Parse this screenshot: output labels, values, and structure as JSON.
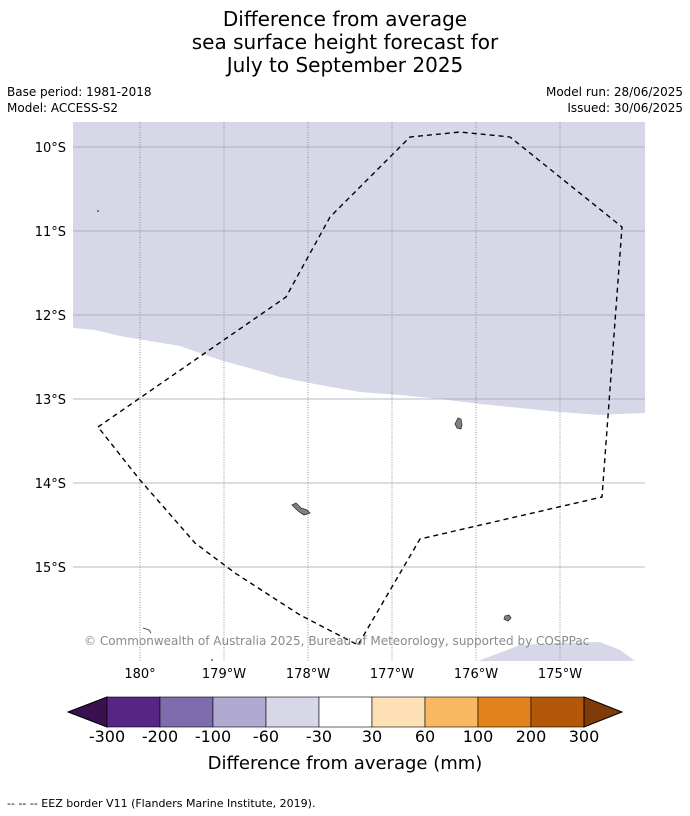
{
  "title": {
    "line1": "Difference from average",
    "line2": "sea surface height forecast for",
    "line3": "July to September 2025"
  },
  "meta": {
    "base_period": "Base period: 1981-2018",
    "model": "Model: ACCESS-S2",
    "model_run": "Model run: 28/06/2025",
    "issued": "Issued: 30/06/2025"
  },
  "map": {
    "lat_labels": [
      "10°S",
      "11°S",
      "12°S",
      "13°S",
      "14°S",
      "15°S"
    ],
    "lon_labels": [
      "180°",
      "179°W",
      "178°W",
      "177°W",
      "176°W",
      "175°W"
    ],
    "copyright": "© Commonwealth of Australia 2025, Bureau of Meteorology, supported by COSPPac",
    "colors": {
      "anomaly_minus30_to_minus60": "#d6d8e8",
      "land": "#808080",
      "lat_gridline": "#a0a0b4",
      "lon_gridline": "#7a7a8a"
    }
  },
  "colorbar": {
    "title": "Difference from average (mm)",
    "tick_labels": [
      "-300",
      "-200",
      "-100",
      "-60",
      "-30",
      "30",
      "60",
      "100",
      "200",
      "300"
    ],
    "colors": [
      "#3b0f50",
      "#572585",
      "#7e6cae",
      "#b0aad2",
      "#d6d8e8",
      "#ffffff",
      "#fde0b4",
      "#f9b762",
      "#e1821c",
      "#b35708",
      "#7f3b08"
    ]
  },
  "footnote": "--  --  -- EEZ border V11 (Flanders Marine Institute, 2019)."
}
